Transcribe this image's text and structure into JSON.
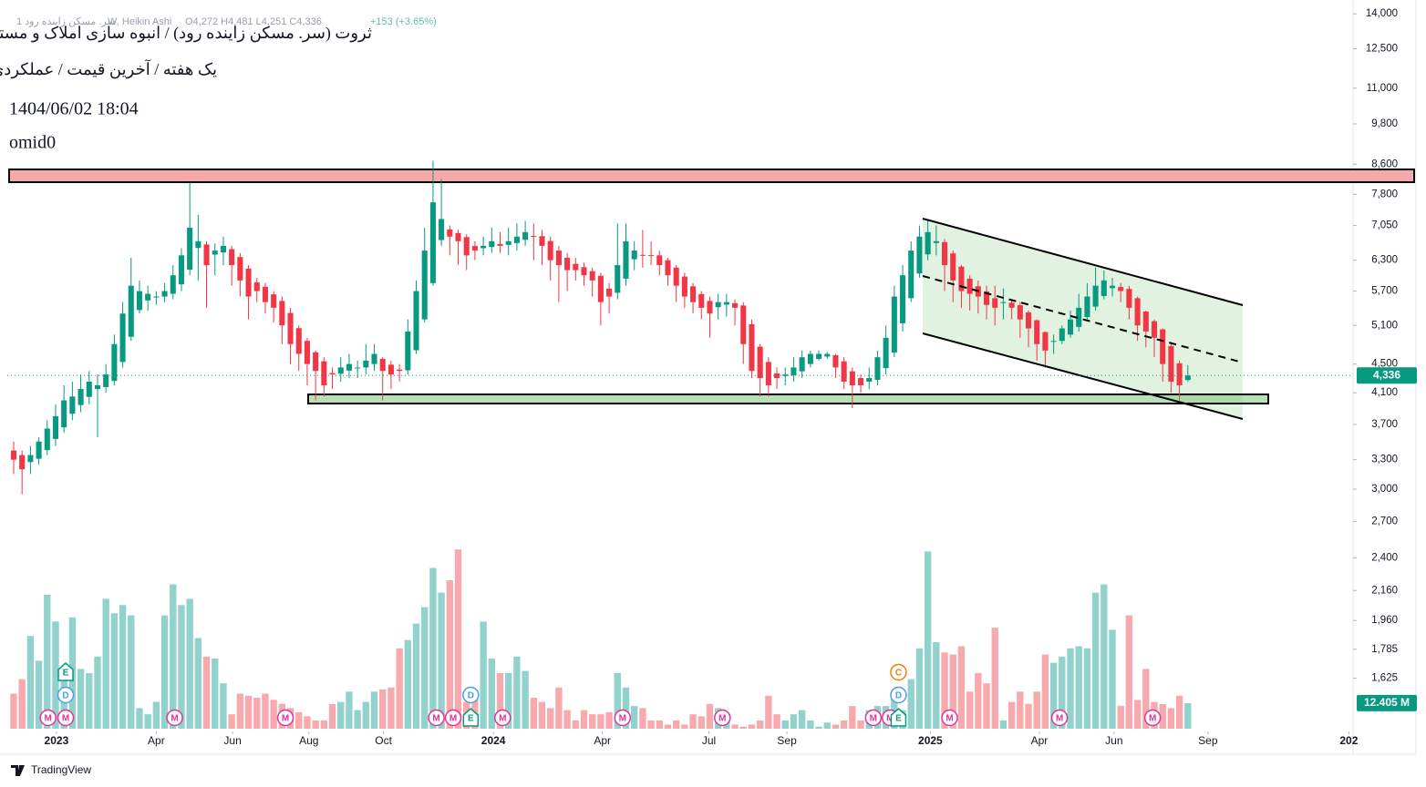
{
  "header": {
    "symbol": "1 سر. مسکن زاینده رود",
    "interval": "W, Heikin Ashi",
    "ohlc": "O4,272 H4,481 L4,251 C4,336",
    "change": "+153 (+3.65%)",
    "title": "ثروت (سر. مسکن زاینده رود) / انبوه سازی املاک و مستغلات",
    "subtitle": "یک هفته / آخرین قیمت / عملکردی",
    "date": "1404/06/02 18:04",
    "author": "omid0",
    "brand": "TradingView"
  },
  "chart_data": {
    "type": "candlestick",
    "log_scale": true,
    "grid": false,
    "up_color": "#089981",
    "down_color": "#f23645",
    "volume_up_color": "#92d2cc",
    "volume_down_color": "#f7a9ae",
    "xlim": [
      -0.76,
      159.7
    ],
    "xticks": [
      {
        "value": 5.1,
        "label": "2023"
      },
      {
        "value": 17.0,
        "label": "Apr"
      },
      {
        "value": 26.1,
        "label": "Jun"
      },
      {
        "value": 35.2,
        "label": "Aug"
      },
      {
        "value": 44.1,
        "label": "Oct"
      },
      {
        "value": 57.2,
        "label": "2024"
      },
      {
        "value": 70.2,
        "label": "Apr"
      },
      {
        "value": 82.9,
        "label": "Jul"
      },
      {
        "value": 92.2,
        "label": "Sep"
      },
      {
        "value": 109.3,
        "label": "2025"
      },
      {
        "value": 122.3,
        "label": "Apr"
      },
      {
        "value": 131.2,
        "label": "Jun"
      },
      {
        "value": 142.4,
        "label": "Sep"
      },
      {
        "value": 159.2,
        "label": "202"
      }
    ],
    "ylim": [
      1380,
      14300
    ],
    "yticks": [
      {
        "value": 1625,
        "label": "1,625"
      },
      {
        "value": 1785,
        "label": "1,785"
      },
      {
        "value": 1960,
        "label": "1,960"
      },
      {
        "value": 2160,
        "label": "2,160"
      },
      {
        "value": 2400,
        "label": "2,400"
      },
      {
        "value": 2700,
        "label": "2,700"
      },
      {
        "value": 3000,
        "label": "3,000"
      },
      {
        "value": 3300,
        "label": "3,300"
      },
      {
        "value": 3700,
        "label": "3,700"
      },
      {
        "value": 4100,
        "label": "4,100"
      },
      {
        "value": 4500,
        "label": "4,500"
      },
      {
        "value": 5100,
        "label": "5,100"
      },
      {
        "value": 5700,
        "label": "5,700"
      },
      {
        "value": 6300,
        "label": "6,300"
      },
      {
        "value": 7050,
        "label": "7,050"
      },
      {
        "value": 7800,
        "label": "7,800"
      },
      {
        "value": 8600,
        "label": "8,600"
      },
      {
        "value": 9800,
        "label": "9,800"
      },
      {
        "value": 11000,
        "label": "11,000"
      },
      {
        "value": 12500,
        "label": "12,500"
      },
      {
        "value": 14000,
        "label": "14,000"
      }
    ],
    "open": [
      3400,
      3350,
      3275,
      3310,
      3405,
      3530,
      3665,
      3830,
      3940,
      4045,
      4150,
      4175,
      4260,
      4530,
      4915,
      5360,
      5530,
      5590,
      5600,
      5650,
      5825,
      6110,
      6555,
      6630,
      6415,
      6460,
      6530,
      6365,
      6130,
      5865,
      5780,
      5640,
      5520,
      5310,
      5055,
      4850,
      4675,
      4540,
      4370,
      4360,
      4405,
      4450,
      4450,
      4500,
      4575,
      4490,
      4420,
      4410,
      4705,
      5200,
      5850,
      6725,
      6960,
      6880,
      6790,
      6595,
      6550,
      6575,
      6640,
      6620,
      6660,
      6730,
      6815,
      6810,
      6705,
      6500,
      6350,
      6225,
      6160,
      6080,
      5990,
      5745,
      5670,
      5935,
      6320,
      6410,
      6405,
      6400,
      6300,
      6150,
      5975,
      5790,
      5645,
      5520,
      5410,
      5455,
      5480,
      5440,
      5120,
      4760,
      4530,
      4365,
      4330,
      4340,
      4395,
      4500,
      4575,
      4610,
      4630,
      4540,
      4395,
      4300,
      4250,
      4275,
      4440,
      4670,
      5135,
      5570,
      6035,
      6420,
      6660,
      6680,
      6440,
      6170,
      5935,
      5790,
      5695,
      5570,
      5485,
      5490,
      5445,
      5320,
      5185,
      4990,
      4845,
      4850,
      4950,
      5075,
      5240,
      5420,
      5610,
      5755,
      5775,
      5740,
      5570,
      5335,
      5170,
      5035,
      4770,
      4510,
      4272
    ],
    "high": [
      3500,
      3400,
      3450,
      3550,
      3750,
      3950,
      4200,
      4250,
      4350,
      4400,
      4350,
      4500,
      4950,
      5500,
      6350,
      5900,
      5800,
      5700,
      5850,
      6200,
      6550,
      8100,
      7300,
      6700,
      6650,
      6800,
      6600,
      6450,
      6200,
      5950,
      5850,
      5700,
      5600,
      5400,
      5100,
      4900,
      4700,
      4600,
      4450,
      4600,
      4650,
      4550,
      4800,
      4800,
      4600,
      4550,
      4500,
      5200,
      5900,
      7000,
      8700,
      8200,
      7050,
      6950,
      6850,
      6700,
      6800,
      7000,
      6900,
      7000,
      7100,
      7150,
      7100,
      6950,
      6800,
      6600,
      6450,
      6350,
      6250,
      6150,
      6050,
      5850,
      7100,
      7100,
      6700,
      6950,
      6700,
      6500,
      6350,
      6200,
      6050,
      5850,
      5700,
      5600,
      5650,
      5650,
      5550,
      5500,
      5200,
      4800,
      4600,
      4450,
      4450,
      4600,
      4700,
      4700,
      4700,
      4680,
      4650,
      4600,
      4450,
      4350,
      4450,
      4700,
      5100,
      5800,
      6200,
      6700,
      7050,
      7200,
      7050,
      6750,
      6500,
      6200,
      6000,
      5900,
      5800,
      5800,
      5750,
      5550,
      5500,
      5350,
      5200,
      5000,
      4950,
      5100,
      5350,
      5650,
      5850,
      6150,
      6100,
      5950,
      5850,
      5800,
      5600,
      5350,
      5200,
      5050,
      4800,
      4550,
      4481
    ],
    "low": [
      3150,
      2950,
      3150,
      3250,
      3350,
      3450,
      3600,
      3750,
      3850,
      3950,
      3550,
      4100,
      4200,
      4450,
      4850,
      5300,
      5350,
      5450,
      5500,
      5550,
      5700,
      6000,
      5900,
      5400,
      6000,
      6200,
      5800,
      5600,
      5200,
      5500,
      5300,
      5150,
      4800,
      4500,
      4400,
      4200,
      4000,
      4050,
      4150,
      4250,
      4300,
      4300,
      4350,
      4400,
      4000,
      4150,
      4250,
      4350,
      4650,
      5150,
      5800,
      6600,
      6400,
      6200,
      6100,
      6300,
      6400,
      6450,
      6450,
      6400,
      6500,
      6600,
      6300,
      6200,
      5900,
      5500,
      5700,
      5900,
      5800,
      5600,
      5100,
      5300,
      5550,
      5800,
      6100,
      6150,
      6200,
      6000,
      5800,
      5500,
      5400,
      5300,
      5200,
      4900,
      5200,
      5250,
      5100,
      4500,
      4300,
      4050,
      4050,
      4150,
      4200,
      4250,
      4300,
      4450,
      4550,
      4580,
      4300,
      4150,
      3900,
      4100,
      4150,
      4200,
      4350,
      4600,
      5000,
      5500,
      5950,
      6300,
      6400,
      5700,
      5500,
      5400,
      5350,
      5300,
      5200,
      5100,
      5200,
      5200,
      4900,
      4750,
      4550,
      4450,
      4650,
      4800,
      4900,
      5000,
      5200,
      5350,
      5550,
      5600,
      5500,
      5200,
      4850,
      4750,
      4600,
      4250,
      4100,
      4000,
      4251
    ],
    "close": [
      3300,
      3200,
      3350,
      3500,
      3650,
      3800,
      4000,
      4050,
      4150,
      4250,
      4200,
      4350,
      4800,
      5300,
      5800,
      5700,
      5650,
      5600,
      5700,
      6000,
      6400,
      7000,
      6700,
      6200,
      6500,
      6600,
      6200,
      5900,
      5600,
      5700,
      5500,
      5400,
      5100,
      4800,
      4650,
      4500,
      4400,
      4200,
      4350,
      4450,
      4500,
      4450,
      4550,
      4650,
      4400,
      4350,
      4400,
      5000,
      5700,
      6500,
      7600,
      7200,
      6800,
      6700,
      6400,
      6500,
      6600,
      6700,
      6600,
      6700,
      6800,
      6900,
      6800,
      6600,
      6300,
      6200,
      6100,
      6100,
      6000,
      5900,
      5500,
      5600,
      6200,
      6700,
      6500,
      6400,
      6400,
      6200,
      6000,
      5800,
      5600,
      5500,
      5400,
      5300,
      5500,
      5500,
      5400,
      4800,
      4400,
      4300,
      4200,
      4300,
      4350,
      4450,
      4600,
      4650,
      4650,
      4650,
      4450,
      4250,
      4200,
      4200,
      4300,
      4600,
      4900,
      5600,
      6000,
      6500,
      6800,
      6900,
      6700,
      6200,
      5900,
      5700,
      5650,
      5600,
      5450,
      5400,
      5500,
      5400,
      5200,
      5050,
      4800,
      4700,
      4850,
      5050,
      5200,
      5400,
      5600,
      5800,
      5900,
      5800,
      5700,
      5400,
      5100,
      5000,
      4900,
      4500,
      4250,
      4200,
      4336
    ],
    "last_label": "4,336",
    "volume_ylim": [
      0,
      350
    ],
    "volume": [
      17,
      24,
      45,
      33,
      65,
      52,
      24,
      54,
      29,
      27,
      35,
      63,
      56,
      60,
      55,
      10,
      7,
      13,
      55,
      70,
      60,
      63,
      44,
      35,
      34,
      22,
      7,
      17,
      16,
      15,
      17,
      14,
      12,
      10,
      8,
      6,
      4,
      4,
      12,
      13,
      18,
      9,
      13,
      18,
      19,
      20,
      39,
      43,
      51,
      59,
      78,
      66,
      72,
      87,
      13,
      18,
      52,
      34,
      27,
      27,
      35,
      28,
      15,
      13,
      10,
      20,
      9,
      4,
      9,
      7,
      7,
      8,
      27,
      20,
      11,
      10,
      4,
      4,
      2,
      4,
      2,
      7,
      6,
      12,
      10,
      6,
      2,
      1,
      2,
      4,
      16,
      7,
      4,
      7,
      9,
      4,
      1,
      3,
      2,
      4,
      11,
      4,
      9,
      11,
      11,
      15,
      9,
      24,
      39,
      86,
      42,
      37,
      36,
      40,
      18,
      27,
      22,
      49,
      4,
      13,
      18,
      12,
      18,
      36,
      32,
      35,
      39,
      40,
      39,
      66,
      70,
      48,
      11,
      55,
      14,
      29,
      13,
      12,
      10,
      16,
      12.405
    ],
    "volume_label": "12.405 M",
    "events": [
      {
        "x": 4.1,
        "label": "M",
        "color": "#e0349a"
      },
      {
        "x": 6.2,
        "label": "M",
        "color": "#e0349a"
      },
      {
        "x": 6.2,
        "label": "D",
        "color": "#4a9df0"
      },
      {
        "x": 6.2,
        "label": "E",
        "color": "#089981"
      },
      {
        "x": 19.2,
        "label": "M",
        "color": "#e0349a"
      },
      {
        "x": 32.4,
        "label": "M",
        "color": "#e0349a"
      },
      {
        "x": 50.4,
        "label": "M",
        "color": "#e0349a"
      },
      {
        "x": 52.4,
        "label": "M",
        "color": "#e0349a"
      },
      {
        "x": 54.5,
        "label": "E",
        "color": "#089981"
      },
      {
        "x": 54.5,
        "label": "D",
        "color": "#4a9df0"
      },
      {
        "x": 58.3,
        "label": "M",
        "color": "#e0349a"
      },
      {
        "x": 72.6,
        "label": "M",
        "color": "#e0349a"
      },
      {
        "x": 84.5,
        "label": "M",
        "color": "#e0349a"
      },
      {
        "x": 102.5,
        "label": "M",
        "color": "#e0349a"
      },
      {
        "x": 104.5,
        "label": "M",
        "color": "#e0349a"
      },
      {
        "x": 105.5,
        "label": "E",
        "color": "#089981"
      },
      {
        "x": 105.5,
        "label": "D",
        "color": "#4a9df0"
      },
      {
        "x": 105.5,
        "label": "C",
        "color": "#f57c00"
      },
      {
        "x": 111.6,
        "label": "M",
        "color": "#e0349a"
      },
      {
        "x": 124.7,
        "label": "M",
        "color": "#e0349a"
      },
      {
        "x": 135.8,
        "label": "M",
        "color": "#e0349a"
      }
    ]
  }
}
